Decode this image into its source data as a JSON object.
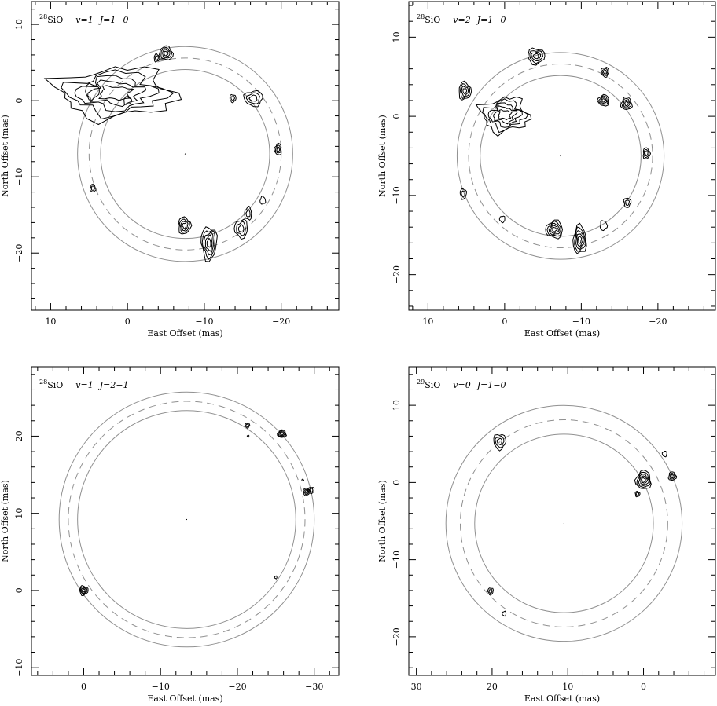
{
  "chart_data": [
    {
      "type": "scatter",
      "panel": "top-left",
      "title_isotope": "28",
      "title_molecule": "SiO",
      "title_v": "v=1",
      "title_J": "J=1−0",
      "xlabel": "East Offset (mas)",
      "ylabel": "North Offset (mas)",
      "xlim": [
        12.5,
        -27.5
      ],
      "ylim": [
        -27.5,
        13
      ],
      "xticks": [
        10,
        0,
        -10,
        -20
      ],
      "yticks": [
        10,
        0,
        -10,
        -20
      ],
      "ring_center": [
        -7.5,
        -7
      ],
      "ring_radii": [
        11,
        12.5,
        14
      ],
      "features": [
        {
          "x": -5,
          "y": 6.2,
          "rx": 0.9,
          "ry": 0.9,
          "levels": 4
        },
        {
          "x": -3.8,
          "y": 5.6,
          "rx": 0.35,
          "ry": 0.5,
          "levels": 2
        },
        {
          "x": -13.7,
          "y": 0.3,
          "rx": 0.4,
          "ry": 0.5,
          "levels": 2
        },
        {
          "x": -16.4,
          "y": 0.3,
          "rx": 1.2,
          "ry": 1.0,
          "levels": 3
        },
        {
          "x": -19.6,
          "y": -6.4,
          "rx": 0.45,
          "ry": 0.75,
          "levels": 3
        },
        {
          "x": 4.5,
          "y": -11.5,
          "rx": 0.35,
          "ry": 0.5,
          "levels": 2
        },
        {
          "x": -7.4,
          "y": -16.4,
          "rx": 0.8,
          "ry": 1.1,
          "levels": 4
        },
        {
          "x": -10.6,
          "y": -18.7,
          "rx": 1.0,
          "ry": 2.2,
          "levels": 5
        },
        {
          "x": -14.8,
          "y": -16.8,
          "rx": 0.85,
          "ry": 1.2,
          "levels": 3
        },
        {
          "x": -15.7,
          "y": -14.8,
          "rx": 0.45,
          "ry": 0.85,
          "levels": 2
        },
        {
          "x": -17.6,
          "y": -13.1,
          "rx": 0.35,
          "ry": 0.5,
          "levels": 1
        }
      ],
      "complex": {
        "x": 1.6,
        "y": 1,
        "levels": 5
      }
    },
    {
      "type": "scatter",
      "panel": "top-right",
      "title_isotope": "28",
      "title_molecule": "SiO",
      "title_v": "v=2",
      "title_J": "J=1−0",
      "xlabel": "East Offset (mas)",
      "ylabel": "North Offset (mas)",
      "xlim": [
        12.5,
        -27.5
      ],
      "ylim": [
        -24.5,
        14.5
      ],
      "xticks": [
        10,
        0,
        -10,
        -20
      ],
      "yticks": [
        10,
        0,
        -10,
        -20
      ],
      "ring_center": [
        -7.3,
        -5
      ],
      "ring_radii": [
        10.5,
        12,
        13.5
      ],
      "features": [
        {
          "x": 5.2,
          "y": 3.2,
          "rx": 0.8,
          "ry": 1.1,
          "levels": 4
        },
        {
          "x": -4.1,
          "y": 7.6,
          "rx": 1.1,
          "ry": 1.0,
          "levels": 4
        },
        {
          "x": -13.1,
          "y": 5.6,
          "rx": 0.5,
          "ry": 0.6,
          "levels": 3
        },
        {
          "x": -12.9,
          "y": 2.0,
          "rx": 0.7,
          "ry": 0.7,
          "levels": 4
        },
        {
          "x": -15.9,
          "y": 1.6,
          "rx": 0.7,
          "ry": 0.8,
          "levels": 4
        },
        {
          "x": -18.5,
          "y": -4.7,
          "rx": 0.45,
          "ry": 0.7,
          "levels": 3
        },
        {
          "x": 5.4,
          "y": -9.8,
          "rx": 0.4,
          "ry": 0.65,
          "levels": 2
        },
        {
          "x": 0.3,
          "y": -13.0,
          "rx": 0.35,
          "ry": 0.4,
          "levels": 1
        },
        {
          "x": -6.5,
          "y": -14.3,
          "rx": 1.1,
          "ry": 1.1,
          "levels": 5
        },
        {
          "x": -9.8,
          "y": -15.6,
          "rx": 0.85,
          "ry": 1.8,
          "levels": 5
        },
        {
          "x": -12.9,
          "y": -13.8,
          "rx": 0.45,
          "ry": 0.6,
          "levels": 1
        },
        {
          "x": -16.0,
          "y": -10.9,
          "rx": 0.45,
          "ry": 0.6,
          "levels": 2
        }
      ],
      "complex": {
        "x": 0,
        "y": 0.2,
        "levels": 5
      }
    },
    {
      "type": "scatter",
      "panel": "bottom-left",
      "title_isotope": "28",
      "title_molecule": "SiO",
      "title_v": "v=1",
      "title_J": "J=2−1",
      "xlabel": "East Offset (mas)",
      "ylabel": "North Offset (mas)",
      "xlim": [
        6.8,
        -33.2
      ],
      "ylim": [
        -11,
        29
      ],
      "xticks": [
        0,
        -10,
        -20,
        -30
      ],
      "yticks": [
        20,
        10,
        0,
        -10
      ],
      "ring_center": [
        -13.4,
        9.2
      ],
      "ring_radii": [
        14.2,
        15.4,
        16.6
      ],
      "features": [
        {
          "x": 0,
          "y": 0,
          "rx": 0.55,
          "ry": 0.6,
          "levels": 4
        },
        {
          "x": -21.3,
          "y": 21.4,
          "rx": 0.3,
          "ry": 0.3,
          "levels": 2
        },
        {
          "x": -21.4,
          "y": 20.0,
          "rx": 0.12,
          "ry": 0.12,
          "levels": 1
        },
        {
          "x": -25.8,
          "y": 20.3,
          "rx": 0.55,
          "ry": 0.5,
          "levels": 4
        },
        {
          "x": -28.5,
          "y": 14.3,
          "rx": 0.12,
          "ry": 0.12,
          "levels": 1
        },
        {
          "x": -29.0,
          "y": 12.8,
          "rx": 0.45,
          "ry": 0.45,
          "levels": 3
        },
        {
          "x": -29.6,
          "y": 13.0,
          "rx": 0.4,
          "ry": 0.4,
          "levels": 2
        },
        {
          "x": -25.0,
          "y": 1.7,
          "rx": 0.15,
          "ry": 0.18,
          "levels": 1
        }
      ]
    },
    {
      "type": "scatter",
      "panel": "bottom-right",
      "title_isotope": "29",
      "title_molecule": "SiO",
      "title_v": "v=0",
      "title_J": "J=1−0",
      "xlabel": "East Offset (mas)",
      "ylabel": "North Offset (mas)",
      "xlim": [
        31,
        -9.5
      ],
      "ylim": [
        -25,
        15
      ],
      "xticks": [
        30,
        20,
        10,
        0
      ],
      "yticks": [
        10,
        0,
        -10,
        -20
      ],
      "ring_center": [
        10.5,
        -5.3
      ],
      "ring_radii": [
        11.8,
        13.7,
        15.6
      ],
      "features": [
        {
          "x": 19.0,
          "y": 5.3,
          "rx": 0.8,
          "ry": 1.0,
          "levels": 3
        },
        {
          "x": -2.8,
          "y": 3.7,
          "rx": 0.3,
          "ry": 0.35,
          "levels": 1
        },
        {
          "x": 0,
          "y": 0.3,
          "rx": 1.0,
          "ry": 1.2,
          "levels": 5
        },
        {
          "x": -3.8,
          "y": 0.8,
          "rx": 0.5,
          "ry": 0.55,
          "levels": 3
        },
        {
          "x": 0.8,
          "y": -1.5,
          "rx": 0.3,
          "ry": 0.35,
          "levels": 2
        },
        {
          "x": 20.2,
          "y": -14.1,
          "rx": 0.35,
          "ry": 0.45,
          "levels": 2
        },
        {
          "x": 18.4,
          "y": -17.0,
          "rx": 0.25,
          "ry": 0.3,
          "levels": 1
        }
      ]
    }
  ]
}
